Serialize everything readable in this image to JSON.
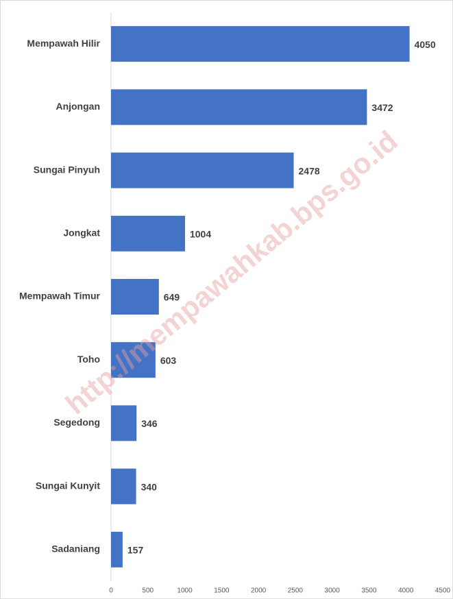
{
  "chart_data": {
    "type": "bar",
    "orientation": "horizontal",
    "categories": [
      "Mempawah Hilir",
      "Anjongan",
      "Sungai Pinyuh",
      "Jongkat",
      "Mempawah Timur",
      "Toho",
      "Segedong",
      "Sungai Kunyit",
      "Sadaniang"
    ],
    "values": [
      4050,
      3472,
      2478,
      1004,
      649,
      603,
      346,
      340,
      157
    ],
    "color": "#4472c4",
    "xlim": [
      0,
      4500
    ],
    "xticks": [
      0,
      500,
      1000,
      1500,
      2000,
      2500,
      3000,
      3500,
      4000,
      4500
    ],
    "grid": false,
    "watermark": "http://mempawahkab.bps.go.id"
  }
}
